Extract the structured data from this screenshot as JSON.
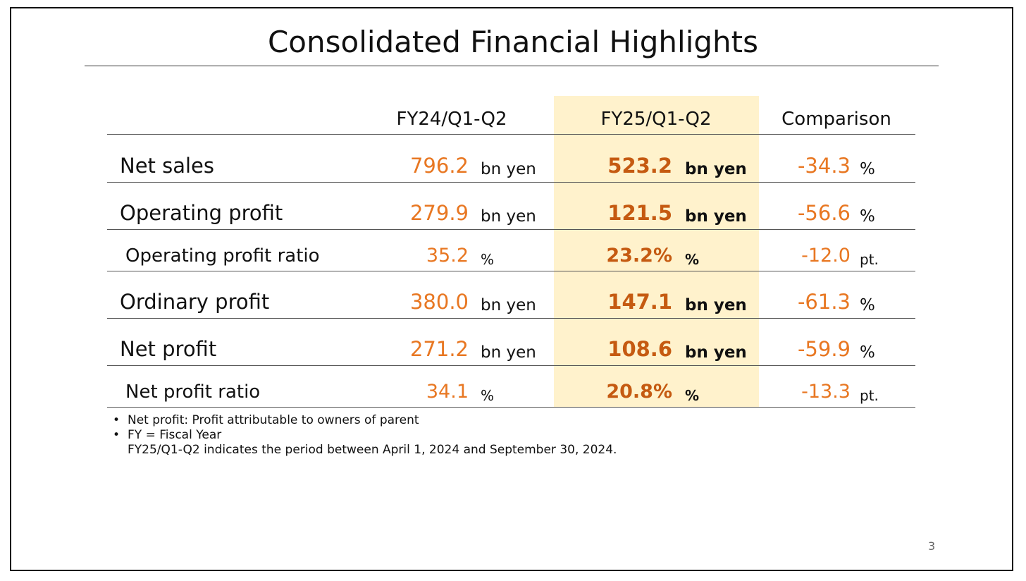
{
  "title": "Consolidated Financial Highlights",
  "columns": {
    "prev": "FY24/Q1-Q2",
    "curr": "FY25/Q1-Q2",
    "comp": "Comparison"
  },
  "rows": [
    {
      "label": "Net sales",
      "prev": "796.2",
      "prev_unit": "bn yen",
      "curr": "523.2",
      "curr_unit": "bn yen",
      "comp": "-34.3",
      "comp_unit": "%"
    },
    {
      "label": "Operating profit",
      "prev": "279.9",
      "prev_unit": "bn yen",
      "curr": "121.5",
      "curr_unit": "bn yen",
      "comp": "-56.6",
      "comp_unit": "%"
    },
    {
      "label": "Operating profit ratio",
      "prev": "35.2",
      "prev_unit": "%",
      "curr": "23.2%",
      "curr_unit": "%",
      "comp": "-12.0",
      "comp_unit": "pt."
    },
    {
      "label": "Ordinary profit",
      "prev": "380.0",
      "prev_unit": "bn yen",
      "curr": "147.1",
      "curr_unit": "bn yen",
      "comp": "-61.3",
      "comp_unit": "%"
    },
    {
      "label": "Net profit",
      "prev": "271.2",
      "prev_unit": "bn yen",
      "curr": "108.6",
      "curr_unit": "bn yen",
      "comp": "-59.9",
      "comp_unit": "%"
    },
    {
      "label": "Net profit ratio",
      "prev": "34.1",
      "prev_unit": "%",
      "curr": "20.8%",
      "curr_unit": "%",
      "comp": "-13.3",
      "comp_unit": "pt."
    }
  ],
  "notes": {
    "note1": "Net profit: Profit attributable to owners of parent",
    "note2": "FY = Fiscal Year",
    "note3": "FY25/Q1-Q2 indicates the period between April 1, 2024 and September 30, 2024.",
    "bullet": "•"
  },
  "page_number": "3",
  "colors": {
    "highlight": "#fff2cc",
    "orange_value": "#e87722",
    "dark_orange_value": "#c55a11"
  }
}
